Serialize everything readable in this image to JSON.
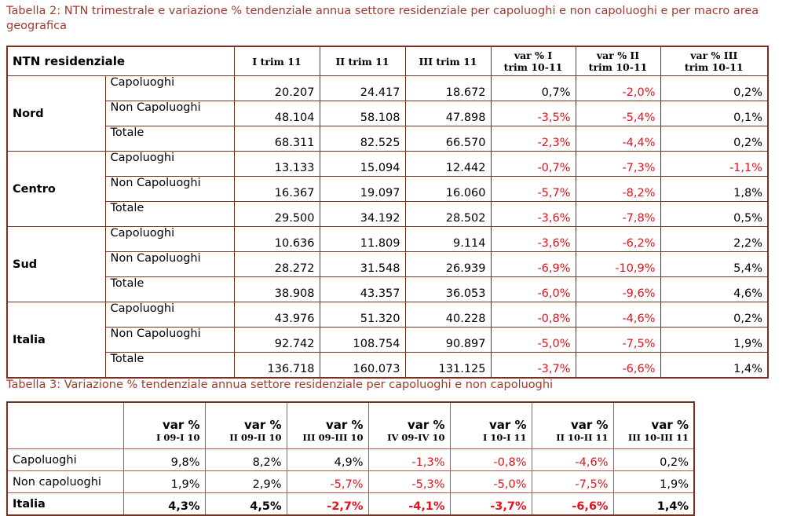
{
  "table1": {
    "title": "Tabella 2: NTN trimestrale e variazione % tendenziale annua settore residenziale per capoluoghi e non capoluoghi e per macro area geografica",
    "header": [
      [
        "NTN residenziale"
      ],
      [
        "I trim 11"
      ],
      [
        "II trim 11"
      ],
      [
        "III trim 11"
      ],
      [
        "var % I",
        "trim 10-11"
      ],
      [
        "var % II",
        "trim 10-11"
      ],
      [
        "var % III",
        "trim 10-11"
      ]
    ],
    "groups": [
      {
        "region": "Nord",
        "rows": [
          [
            "Capoluoghi",
            "20.207",
            "24.417",
            "18.672",
            "0,7%",
            "-2,0%",
            "0,2%"
          ],
          [
            "Non Capoluoghi",
            "48.104",
            "58.108",
            "47.898",
            "-3,5%",
            "-5,4%",
            "0,1%"
          ],
          [
            "Totale",
            "68.311",
            "82.525",
            "66.570",
            "-2,3%",
            "-4,4%",
            "0,2%"
          ]
        ]
      },
      {
        "region": "Centro",
        "rows": [
          [
            "Capoluoghi",
            "13.133",
            "15.094",
            "12.442",
            "-0,7%",
            "-7,3%",
            "-1,1%"
          ],
          [
            "Non Capoluoghi",
            "16.367",
            "19.097",
            "16.060",
            "-5,7%",
            "-8,2%",
            "1,8%"
          ],
          [
            "Totale",
            "29.500",
            "34.192",
            "28.502",
            "-3,6%",
            "-7,8%",
            "0,5%"
          ]
        ]
      },
      {
        "region": "Sud",
        "rows": [
          [
            "Capoluoghi",
            "10.636",
            "11.809",
            "9.114",
            "-3,6%",
            "-6,2%",
            "2,2%"
          ],
          [
            "Non Capoluoghi",
            "28.272",
            "31.548",
            "26.939",
            "-6,9%",
            "-10,9%",
            "5,4%"
          ],
          [
            "Totale",
            "38.908",
            "43.357",
            "36.053",
            "-6,0%",
            "-9,6%",
            "4,6%"
          ]
        ]
      },
      {
        "region": "Italia",
        "rows": [
          [
            "Capoluoghi",
            "43.976",
            "51.320",
            "40.228",
            "-0,8%",
            "-4,6%",
            "0,2%"
          ],
          [
            "Non Capoluoghi",
            "92.742",
            "108.754",
            "90.897",
            "-5,0%",
            "-7,5%",
            "1,9%"
          ],
          [
            "Totale",
            "136.718",
            "160.073",
            "131.125",
            "-3,7%",
            "-6,6%",
            "1,4%"
          ]
        ]
      }
    ]
  },
  "table2": {
    "title": "Tabella 3: Variazione % tendenziale annua settore residenziale per capoluoghi e non capoluoghi",
    "header": [
      [
        "var %",
        "I 09-I 10"
      ],
      [
        "var %",
        "II 09-II 10"
      ],
      [
        "var %",
        "III 09-III 10"
      ],
      [
        "var %",
        "IV 09-IV 10"
      ],
      [
        "var %",
        "I 10-I 11"
      ],
      [
        "var %",
        "II 10-II 11"
      ],
      [
        "var %",
        "III 10-III 11"
      ]
    ],
    "rows": [
      [
        "Capoluoghi",
        "9,8%",
        "8,2%",
        "4,9%",
        "-1,3%",
        "-0,8%",
        "-4,6%",
        "0,2%"
      ],
      [
        "Non capoluoghi",
        "1,9%",
        "2,9%",
        "-5,7%",
        "-5,3%",
        "-5,0%",
        "-7,5%",
        "1,9%"
      ],
      [
        "Italia",
        "4,3%",
        "4,5%",
        "-2,7%",
        "-4,1%",
        "-3,7%",
        "-6,6%",
        "1,4%"
      ]
    ]
  }
}
